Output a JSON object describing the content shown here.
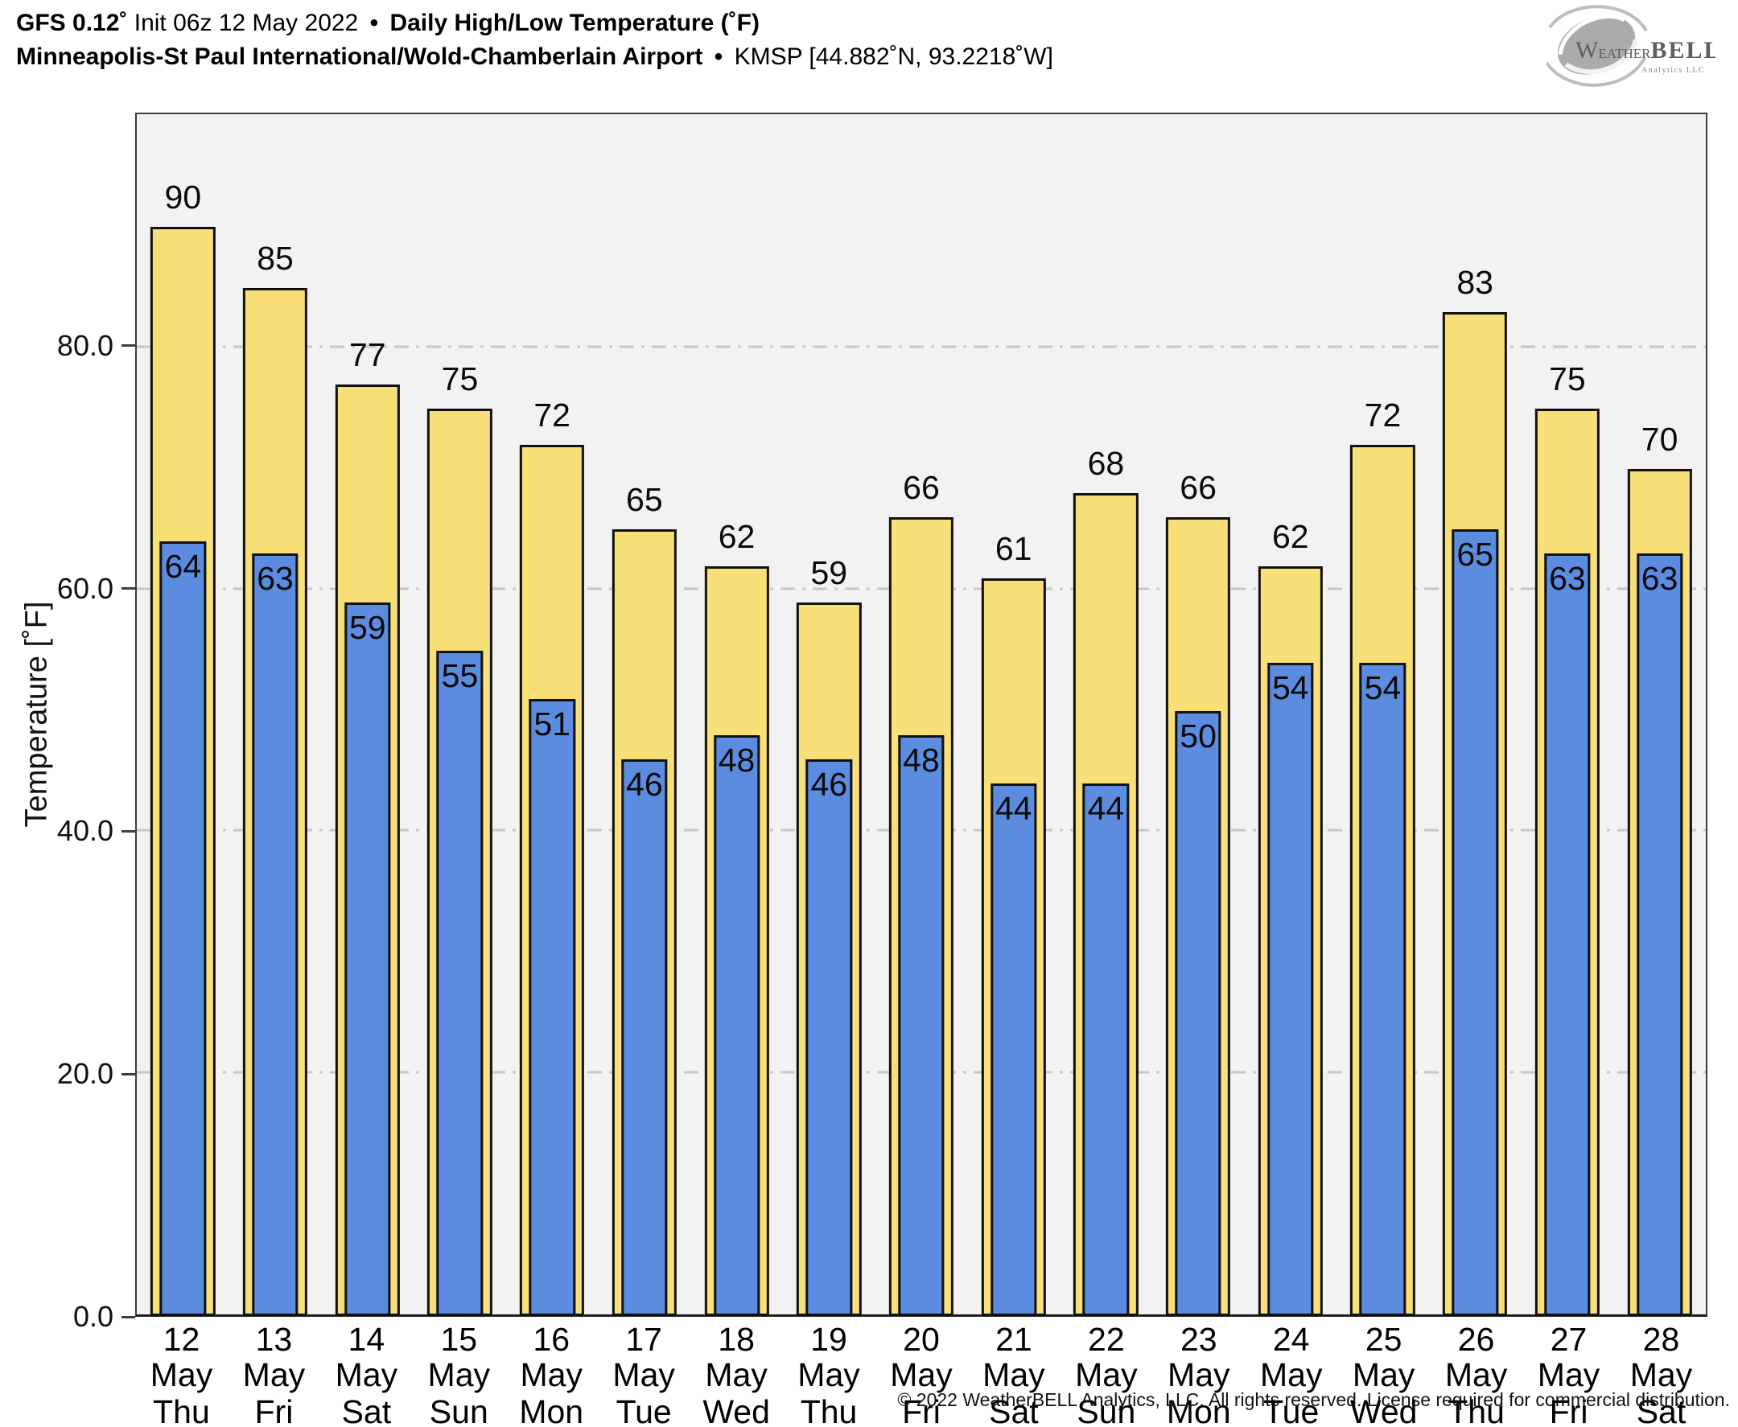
{
  "header": {
    "model": "GFS 0.12˚",
    "init": "Init 06z 12 May 2022",
    "bullet": "•",
    "metric": "Daily High/Low Temperature (˚F)",
    "station": "Minneapolis-St Paul International/Wold-Chamberlain Airport",
    "station_code": "KMSP [44.882˚N, 93.2218˚W]"
  },
  "logo": {
    "part_w": "W",
    "part_eather": "EATHER",
    "part_bell": "BELL",
    "subtext": "Analytics LLC"
  },
  "chart_data": {
    "type": "bar",
    "title": "GFS 0.12˚ Init 06z 12 May 2022 • Daily High/Low Temperature (˚F)",
    "subtitle": "Minneapolis-St Paul International/Wold-Chamberlain Airport • KMSP [44.882˚N, 93.2218˚W]",
    "xlabel": "",
    "ylabel": "Temperature [˚F]",
    "ylim": [
      0,
      99.2
    ],
    "grid": "horizontal dash-dot lines every 20 units",
    "legend_position": "none",
    "yticks": [
      {
        "value": 0,
        "label": "0.0"
      },
      {
        "value": 20,
        "label": "20.0"
      },
      {
        "value": 40,
        "label": "40.0"
      },
      {
        "value": 60,
        "label": "60.0"
      },
      {
        "value": 80,
        "label": "80.0"
      }
    ],
    "series": [
      {
        "name": "Daily High",
        "color": "#f8df77"
      },
      {
        "name": "Daily Low",
        "color": "#5c8ce0"
      }
    ],
    "days": [
      {
        "date": "12 May",
        "weekday": "Thu",
        "high": 90,
        "low": 64
      },
      {
        "date": "13 May",
        "weekday": "Fri",
        "high": 85,
        "low": 63
      },
      {
        "date": "14 May",
        "weekday": "Sat",
        "high": 77,
        "low": 59
      },
      {
        "date": "15 May",
        "weekday": "Sun",
        "high": 75,
        "low": 55
      },
      {
        "date": "16 May",
        "weekday": "Mon",
        "high": 72,
        "low": 51
      },
      {
        "date": "17 May",
        "weekday": "Tue",
        "high": 65,
        "low": 46
      },
      {
        "date": "18 May",
        "weekday": "Wed",
        "high": 62,
        "low": 48
      },
      {
        "date": "19 May",
        "weekday": "Thu",
        "high": 59,
        "low": 46
      },
      {
        "date": "20 May",
        "weekday": "Fri",
        "high": 66,
        "low": 48
      },
      {
        "date": "21 May",
        "weekday": "Sat",
        "high": 61,
        "low": 44
      },
      {
        "date": "22 May",
        "weekday": "Sun",
        "high": 68,
        "low": 44
      },
      {
        "date": "23 May",
        "weekday": "Mon",
        "high": 66,
        "low": 50
      },
      {
        "date": "24 May",
        "weekday": "Tue",
        "high": 62,
        "low": 54
      },
      {
        "date": "25 May",
        "weekday": "Wed",
        "high": 72,
        "low": 54
      },
      {
        "date": "26 May",
        "weekday": "Thu",
        "high": 83,
        "low": 65
      },
      {
        "date": "27 May",
        "weekday": "Fri",
        "high": 75,
        "low": 63
      },
      {
        "date": "28 May",
        "weekday": "Sat",
        "high": 70,
        "low": 63
      }
    ],
    "colors": {
      "plot_background": "#f2f2f2",
      "page_background": "#ffffff",
      "gridline": "#c7c7c7",
      "frame": "#3d3d3d",
      "bar_edge": "#111111"
    }
  },
  "footer": {
    "copyright": "© 2022 WeatherBELL Analytics, LLC. All rights reserved. License required for commercial distribution."
  }
}
